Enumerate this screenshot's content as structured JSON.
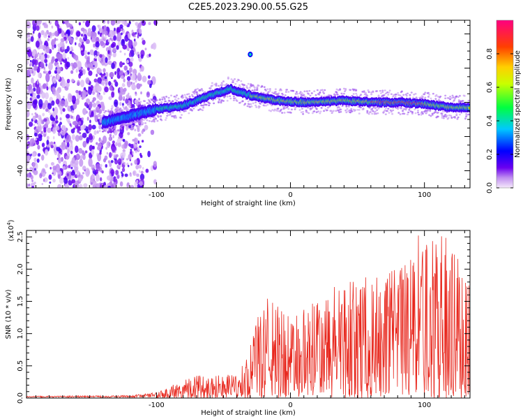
{
  "title": "C2E5.2023.290.00.55.G25",
  "chart_data": [
    {
      "type": "heatmap",
      "xlabel": "Height of straight line (km)",
      "ylabel": "Frequency (Hz)",
      "xlim": [
        -197,
        134
      ],
      "ylim": [
        -50,
        48
      ],
      "xticks": [
        -100,
        0,
        100
      ],
      "yticks": [
        -40,
        -20,
        0,
        20,
        40
      ],
      "colorbar": {
        "label": "Normalized spectral amplitude",
        "range": [
          0,
          1
        ],
        "ticks": [
          0.0,
          0.2,
          0.4,
          0.6,
          0.8
        ],
        "tick_labels": [
          "0.0",
          "0.2",
          "0.4",
          "0.6",
          "0.8"
        ]
      },
      "ridge": [
        {
          "x": -140,
          "y": -12
        },
        {
          "x": -120,
          "y": -8
        },
        {
          "x": -100,
          "y": -4
        },
        {
          "x": -80,
          "y": -2
        },
        {
          "x": -60,
          "y": 4
        },
        {
          "x": -45,
          "y": 8
        },
        {
          "x": -30,
          "y": 4
        },
        {
          "x": -10,
          "y": 1
        },
        {
          "x": 10,
          "y": 0
        },
        {
          "x": 40,
          "y": 1
        },
        {
          "x": 60,
          "y": 0
        },
        {
          "x": 80,
          "y": 0
        },
        {
          "x": 100,
          "y": -1
        },
        {
          "x": 120,
          "y": -3
        },
        {
          "x": 134,
          "y": -3
        }
      ],
      "isolated_blob": {
        "x": -30,
        "y": 28
      }
    },
    {
      "type": "line",
      "xlabel": "Height of straight line (km)",
      "ylabel": "SNR (10 * v/v)",
      "scale_label": "(x10^4)",
      "xlim": [
        -197,
        134
      ],
      "ylim": [
        0,
        2.6
      ],
      "xticks": [
        -100,
        0,
        100
      ],
      "yticks": [
        0.0,
        0.5,
        1.0,
        1.5,
        2.0,
        2.5
      ],
      "ytick_labels": [
        "0.0",
        "0.5",
        "1.0",
        "1.5",
        "2.0",
        "2.5"
      ],
      "color": "#e8281e",
      "envelope": [
        {
          "x": -197,
          "y": 0.02
        },
        {
          "x": -120,
          "y": 0.03
        },
        {
          "x": -100,
          "y": 0.08
        },
        {
          "x": -90,
          "y": 0.18
        },
        {
          "x": -75,
          "y": 0.35
        },
        {
          "x": -55,
          "y": 0.38
        },
        {
          "x": -40,
          "y": 0.35
        },
        {
          "x": -30,
          "y": 0.8
        },
        {
          "x": -20,
          "y": 1.6
        },
        {
          "x": 0,
          "y": 1.3
        },
        {
          "x": 20,
          "y": 1.5
        },
        {
          "x": 40,
          "y": 1.85
        },
        {
          "x": 60,
          "y": 1.9
        },
        {
          "x": 80,
          "y": 2.0
        },
        {
          "x": 95,
          "y": 2.55
        },
        {
          "x": 115,
          "y": 2.58
        },
        {
          "x": 134,
          "y": 1.8
        }
      ]
    }
  ]
}
